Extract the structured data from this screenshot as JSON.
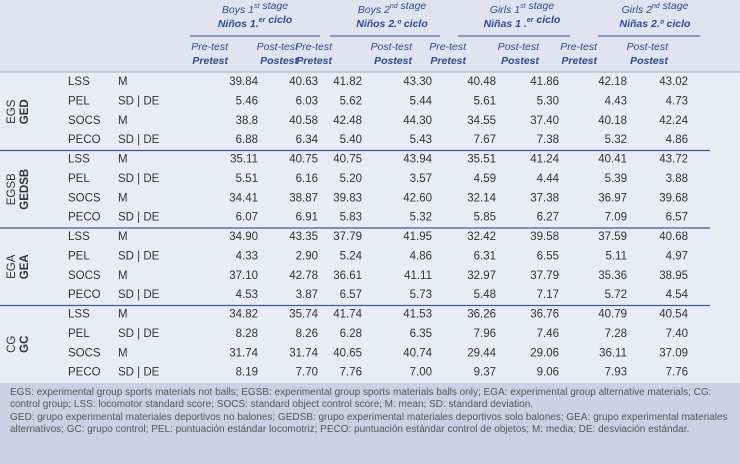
{
  "header": {
    "groups": [
      {
        "en": [
          "Boys 1",
          {
            "sup": "st"
          },
          " stage"
        ],
        "es": [
          "Niños 1.",
          {
            "sup": "er"
          },
          " ciclo"
        ]
      },
      {
        "en": [
          "Boys 2",
          {
            "sup": "nd"
          },
          " stage"
        ],
        "es": [
          "Niños 2.º ciclo"
        ]
      },
      {
        "en": [
          "Girls 1",
          {
            "sup": "st"
          },
          " stage"
        ],
        "es": [
          "Niñas 1 .",
          {
            "sup": "er"
          },
          " ciclo"
        ]
      },
      {
        "en": [
          "Girls 2",
          {
            "sup": "nd"
          },
          " stage"
        ],
        "es": [
          "Niñas 2.º ciclo"
        ]
      }
    ],
    "sub_en": [
      "Pre-test",
      "Post-test"
    ],
    "sub_es": [
      "Pretest",
      "Postest"
    ]
  },
  "table": {
    "sections": [
      {
        "label_en": "EGS",
        "label_es": "GED",
        "rows": [
          [
            "LSS",
            "M",
            "39.84",
            "40.63",
            "41.82",
            "43.30",
            "40.48",
            "41.86",
            "42.18",
            "43.02"
          ],
          [
            "PEL",
            "SD | DE",
            "5.46",
            "6.03",
            "5.62",
            "5.44",
            "5.61",
            "5.30",
            "4.43",
            "4.73"
          ],
          [
            "SOCS",
            "M",
            "38.8",
            "40.58",
            "42.48",
            "44.30",
            "34.55",
            "37.40",
            "40.18",
            "42.24"
          ],
          [
            "PECO",
            "SD | DE",
            "6.88",
            "6.34",
            "5.40",
            "5.43",
            "7.67",
            "7.38",
            "5.32",
            "4.86"
          ]
        ]
      },
      {
        "label_en": "EGSB",
        "label_es": "GEDSB",
        "rows": [
          [
            "LSS",
            "M",
            "35.11",
            "40.75",
            "40.75",
            "43.94",
            "35.51",
            "41.24",
            "40.41",
            "43.72"
          ],
          [
            "PEL",
            "SD | DE",
            "5.51",
            "6.16",
            "5.20",
            "3.57",
            "4.59",
            "4.44",
            "5.39",
            "3.88"
          ],
          [
            "SOCS",
            "M",
            "34.41",
            "38.87",
            "39.83",
            "42.60",
            "32.14",
            "37.38",
            "36.97",
            "39.68"
          ],
          [
            "PECO",
            "SD | DE",
            "6.07",
            "6.91",
            "5.83",
            "5.32",
            "5.85",
            "6.27",
            "7.09",
            "6.57"
          ]
        ]
      },
      {
        "label_en": "EGA",
        "label_es": "GEA",
        "rows": [
          [
            "LSS",
            "M",
            "34.90",
            "43.35",
            "37.79",
            "41.95",
            "32.42",
            "39.58",
            "37.59",
            "40.68"
          ],
          [
            "PEL",
            "SD | DE",
            "4.33",
            "2.90",
            "5.24",
            "4.86",
            "6.31",
            "6.55",
            "5.11",
            "4.97"
          ],
          [
            "SOCS",
            "M",
            "37.10",
            "42.78",
            "36.61",
            "41.11",
            "32.97",
            "37.79",
            "35.36",
            "38.95"
          ],
          [
            "PECO",
            "SD | DE",
            "4.53",
            "3.87",
            "6.57",
            "5.73",
            "5.48",
            "7.17",
            "5.72",
            "4.54"
          ]
        ]
      },
      {
        "label_en": "CG",
        "label_es": "GC",
        "rows": [
          [
            "LSS",
            "M",
            "34.82",
            "35.74",
            "41.74",
            "41.53",
            "36.26",
            "36.76",
            "40.79",
            "40.54"
          ],
          [
            "PEL",
            "SD | DE",
            "8.28",
            "8.26",
            "6.28",
            "6.35",
            "7.96",
            "7.46",
            "7.28",
            "7.40"
          ],
          [
            "SOCS",
            "M",
            "31.74",
            "31.74",
            "40.65",
            "40.74",
            "29.44",
            "29.06",
            "36.11",
            "37.09"
          ],
          [
            "PECO",
            "SD | DE",
            "8.19",
            "7.70",
            "7.76",
            "7.00",
            "9.37",
            "9.06",
            "7.93",
            "7.76"
          ]
        ]
      }
    ]
  },
  "footnotes": [
    "EGS: experimental group sports materials not balls; EGSB: experimental group sports materials balls only; EGA: experimental group alternative materials; CG: control group; LSS: locomotor standard score; SOCS: standard object control score; M: mean; SD: standard deviation.",
    "GED: grupo experimental materiales deportivos no balones; GEDSB: grupo experimental materiales deportivos solo balones; GEA: grupo experimental materiales alternativos; GC: grupo control; PEL: puntuación estándar locomotriz; PECO: puntuación estándar control de objetos; M: media; DE: desviación estándar."
  ]
}
